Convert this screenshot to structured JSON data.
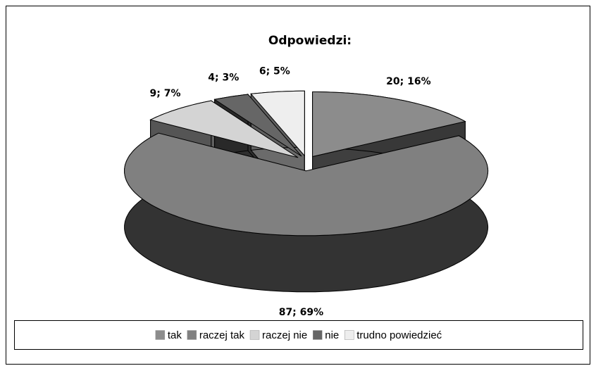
{
  "chart_data": {
    "type": "pie",
    "title": "Odpowiedzi:",
    "categories": [
      "tak",
      "raczej tak",
      "raczej nie",
      "nie",
      "trudno powiedzieć"
    ],
    "values": [
      20,
      87,
      9,
      4,
      6
    ],
    "value_labels": [
      "20; 16%",
      "87; 69%",
      "9; 7%",
      "4; 3%",
      "6; 5%"
    ],
    "colors": [
      "#8c8c8c",
      "#808080",
      "#d4d4d4",
      "#666666",
      "#eeeeee"
    ],
    "legend": "bottom"
  }
}
